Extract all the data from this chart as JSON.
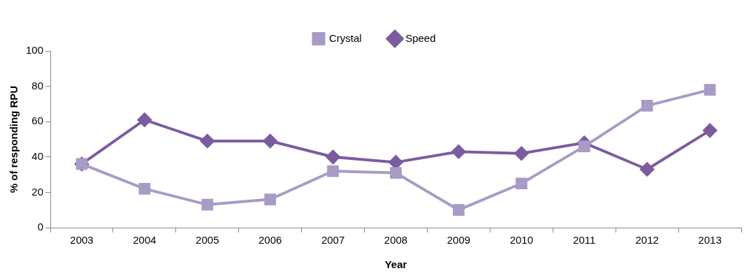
{
  "chart_data": {
    "type": "line",
    "xlabel": "Year",
    "ylabel": "% of responding RPU",
    "categories": [
      "2003",
      "2004",
      "2005",
      "2006",
      "2007",
      "2008",
      "2009",
      "2010",
      "2011",
      "2012",
      "2013"
    ],
    "series": [
      {
        "name": "Speed",
        "color": "#7b5c9f",
        "marker": "diamond",
        "values": [
          36,
          61,
          49,
          49,
          40,
          37,
          43,
          42,
          48,
          33,
          55
        ]
      },
      {
        "name": "Crystal",
        "color": "#a89bc5",
        "marker": "square",
        "values": [
          36,
          22,
          13,
          16,
          32,
          31,
          10,
          25,
          46,
          69,
          78
        ]
      }
    ],
    "ylim": [
      0,
      100
    ],
    "yticks": [
      0,
      20,
      40,
      60,
      80,
      100
    ],
    "grid": false,
    "legend": "top",
    "line_style": "solid"
  }
}
